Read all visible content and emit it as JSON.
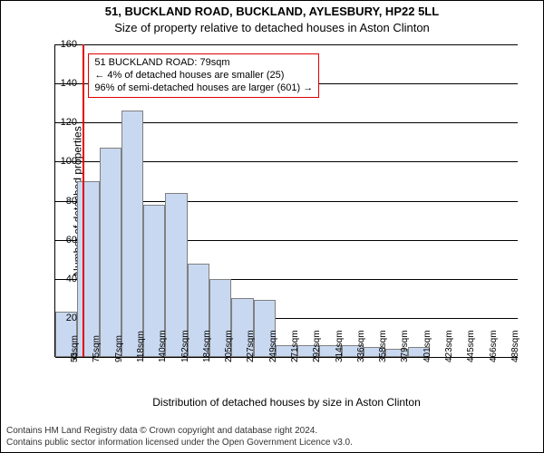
{
  "title_main": "51, BUCKLAND ROAD, BUCKLAND, AYLESBURY, HP22 5LL",
  "subtitle": "Size of property relative to detached houses in Aston Clinton",
  "y_label": "Number of detached properties",
  "x_label": "Distribution of detached houses by size in Aston Clinton",
  "title_fontsize": 13,
  "label_fontsize": 12,
  "tick_fontsize": 11,
  "chart": {
    "type": "histogram",
    "ylim": [
      0,
      160
    ],
    "yticks": [
      0,
      20,
      40,
      60,
      80,
      100,
      120,
      140,
      160
    ],
    "xticks": [
      "53sqm",
      "75sqm",
      "97sqm",
      "118sqm",
      "140sqm",
      "162sqm",
      "184sqm",
      "205sqm",
      "227sqm",
      "249sqm",
      "271sqm",
      "292sqm",
      "314sqm",
      "336sqm",
      "358sqm",
      "379sqm",
      "401sqm",
      "423sqm",
      "445sqm",
      "466sqm",
      "488sqm"
    ],
    "bars": [
      23,
      90,
      107,
      126,
      78,
      84,
      48,
      40,
      30,
      29,
      6,
      6,
      6,
      6,
      5,
      4,
      5,
      0,
      0,
      0,
      0
    ],
    "bar_fill": "#c8d8f0",
    "bar_stroke": "#808080",
    "background": "#ffffff",
    "grid_color": "#000000",
    "vline_x_index": 1.25,
    "vline_color": "#e00000"
  },
  "annotation": {
    "line1": "51 BUCKLAND ROAD: 79sqm",
    "line2": "← 4% of detached houses are smaller (25)",
    "line3": "96% of semi-detached houses are larger (601) →",
    "border_color": "#e00000"
  },
  "footer_line1": "Contains HM Land Registry data © Crown copyright and database right 2024.",
  "footer_line2": "Contains public sector information licensed under the Open Government Licence v3.0."
}
